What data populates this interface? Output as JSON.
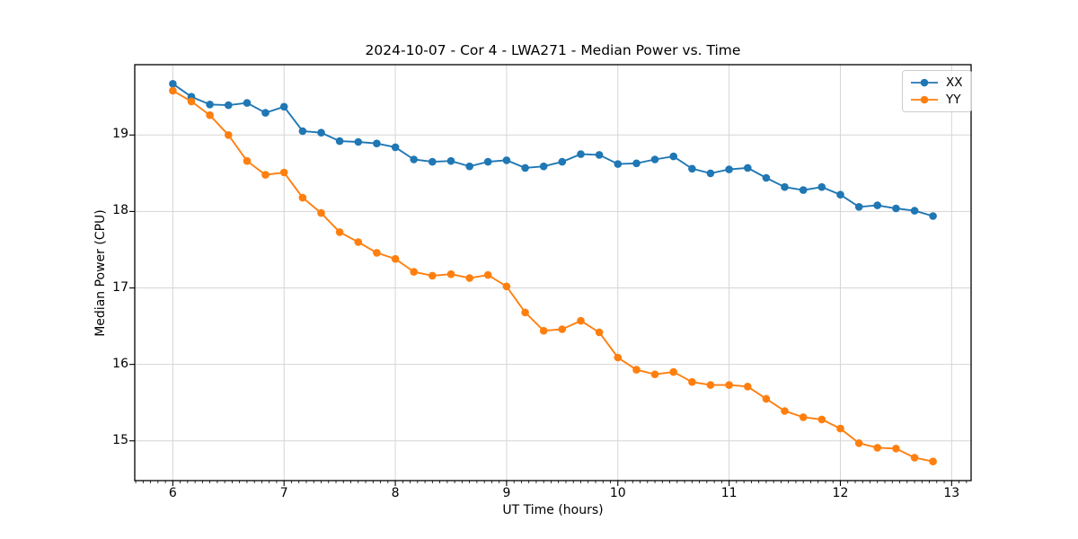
{
  "chart_data": {
    "type": "line",
    "title": "2024-10-07 - Cor 4 - LWA271 - Median Power vs. Time",
    "xlabel": "UT Time (hours)",
    "ylabel": "Median Power (CPU)",
    "xlim": [
      5.658,
      13.175
    ],
    "ylim": [
      14.48,
      19.92
    ],
    "xticks": [
      6,
      7,
      8,
      9,
      10,
      11,
      12,
      13
    ],
    "yticks": [
      15,
      16,
      17,
      18,
      19
    ],
    "grid": true,
    "grid_color": "#d5d5d5",
    "axis_color": "#000000",
    "legend_position": "upper right",
    "x": [
      6.0,
      6.167,
      6.333,
      6.5,
      6.667,
      6.833,
      7.0,
      7.167,
      7.333,
      7.5,
      7.667,
      7.833,
      8.0,
      8.167,
      8.333,
      8.5,
      8.667,
      8.833,
      9.0,
      9.167,
      9.333,
      9.5,
      9.667,
      9.833,
      10.0,
      10.167,
      10.333,
      10.5,
      10.667,
      10.833,
      11.0,
      11.167,
      11.333,
      11.5,
      11.667,
      11.833,
      12.0,
      12.167,
      12.333,
      12.5,
      12.667,
      12.833
    ],
    "series": [
      {
        "name": "XX",
        "color": "#1f77b4",
        "values": [
          19.67,
          19.5,
          19.4,
          19.39,
          19.42,
          19.29,
          19.37,
          19.05,
          19.03,
          18.92,
          18.91,
          18.89,
          18.84,
          18.68,
          18.65,
          18.66,
          18.59,
          18.65,
          18.67,
          18.57,
          18.59,
          18.65,
          18.75,
          18.74,
          18.62,
          18.63,
          18.68,
          18.72,
          18.56,
          18.5,
          18.55,
          18.57,
          18.44,
          18.32,
          18.28,
          18.32,
          18.22,
          18.06,
          18.08,
          18.04,
          18.01,
          17.94
        ]
      },
      {
        "name": "YY",
        "color": "#ff7f0e",
        "values": [
          19.58,
          19.44,
          19.26,
          19.0,
          18.66,
          18.48,
          18.51,
          18.18,
          17.98,
          17.73,
          17.6,
          17.46,
          17.38,
          17.21,
          17.16,
          17.18,
          17.13,
          17.17,
          17.02,
          16.68,
          16.44,
          16.46,
          16.57,
          16.42,
          16.09,
          15.93,
          15.87,
          15.9,
          15.77,
          15.73,
          15.73,
          15.71,
          15.55,
          15.39,
          15.31,
          15.28,
          15.16,
          14.97,
          14.91,
          14.9,
          14.78,
          14.73
        ]
      }
    ]
  }
}
